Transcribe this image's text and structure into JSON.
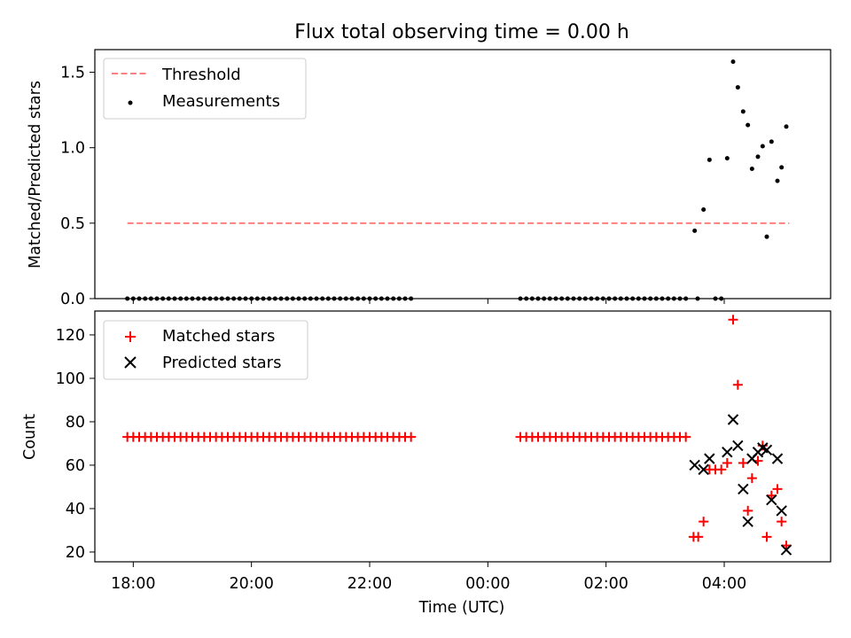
{
  "chart_data": [
    {
      "type": "scatter",
      "title": "Flux total observing time = 0.00 h",
      "xlabel": "",
      "ylabel": "Matched/Predicted stars",
      "ylim": [
        0,
        1.65
      ],
      "xlim": [
        -6.65,
        5.8
      ],
      "yticks": [
        0.0,
        0.5,
        1.0,
        1.5
      ],
      "ytick_labels": [
        "0.0",
        "0.5",
        "1.0",
        "1.5"
      ],
      "legend_position": "top-left",
      "threshold": {
        "name": "Threshold",
        "value": 0.5,
        "x_range": [
          -6.1,
          5.1
        ],
        "color": "#ff7f7f",
        "style": "dashed"
      },
      "series": [
        {
          "name": "Measurements",
          "color": "#000000",
          "marker": "dot",
          "segments": [
            {
              "start": -6.1,
              "end": -1.25,
              "step": 0.1,
              "value": 0
            },
            {
              "start": 0.55,
              "end": 3.35,
              "step": 0.1,
              "value": 0
            }
          ],
          "points": [
            {
              "x": 3.5,
              "y": 0.45
            },
            {
              "x": 3.55,
              "y": 0.0
            },
            {
              "x": 3.65,
              "y": 0.59
            },
            {
              "x": 3.75,
              "y": 0.92
            },
            {
              "x": 3.85,
              "y": 0.0
            },
            {
              "x": 3.95,
              "y": 0.0
            },
            {
              "x": 4.05,
              "y": 0.93
            },
            {
              "x": 4.15,
              "y": 1.57
            },
            {
              "x": 4.23,
              "y": 1.4
            },
            {
              "x": 4.32,
              "y": 1.24
            },
            {
              "x": 4.4,
              "y": 1.15
            },
            {
              "x": 4.47,
              "y": 0.86
            },
            {
              "x": 4.57,
              "y": 0.94
            },
            {
              "x": 4.65,
              "y": 1.01
            },
            {
              "x": 4.72,
              "y": 0.41
            },
            {
              "x": 4.8,
              "y": 1.04
            },
            {
              "x": 4.9,
              "y": 0.78
            },
            {
              "x": 4.97,
              "y": 0.87
            },
            {
              "x": 5.05,
              "y": 1.14
            }
          ]
        }
      ]
    },
    {
      "type": "scatter",
      "title": "",
      "xlabel": "Time (UTC)",
      "ylabel": "Count",
      "ylim": [
        15.5,
        131
      ],
      "xlim": [
        -6.65,
        5.8
      ],
      "yticks": [
        20,
        40,
        60,
        80,
        100,
        120
      ],
      "ytick_labels": [
        "20",
        "40",
        "60",
        "80",
        "100",
        "120"
      ],
      "xticks": [
        -6,
        -4,
        -2,
        0,
        2,
        4
      ],
      "xtick_labels": [
        "18:00",
        "20:00",
        "22:00",
        "00:00",
        "02:00",
        "04:00"
      ],
      "legend_position": "top-left",
      "series": [
        {
          "name": "Matched stars",
          "color": "#ff0000",
          "marker": "plus",
          "segments": [
            {
              "start": -6.1,
              "end": -1.25,
              "step": 0.1,
              "value": 73
            },
            {
              "start": 0.55,
              "end": 3.35,
              "step": 0.1,
              "value": 73
            }
          ],
          "points": [
            {
              "x": 3.48,
              "y": 27
            },
            {
              "x": 3.56,
              "y": 27
            },
            {
              "x": 3.65,
              "y": 34
            },
            {
              "x": 3.75,
              "y": 58
            },
            {
              "x": 3.85,
              "y": 58
            },
            {
              "x": 3.95,
              "y": 58
            },
            {
              "x": 4.05,
              "y": 61
            },
            {
              "x": 4.15,
              "y": 127
            },
            {
              "x": 4.23,
              "y": 97
            },
            {
              "x": 4.32,
              "y": 61
            },
            {
              "x": 4.4,
              "y": 39
            },
            {
              "x": 4.47,
              "y": 54
            },
            {
              "x": 4.57,
              "y": 62
            },
            {
              "x": 4.65,
              "y": 69
            },
            {
              "x": 4.72,
              "y": 27
            },
            {
              "x": 4.8,
              "y": 46
            },
            {
              "x": 4.9,
              "y": 49
            },
            {
              "x": 4.97,
              "y": 34
            },
            {
              "x": 5.05,
              "y": 23
            }
          ]
        },
        {
          "name": "Predicted stars",
          "color": "#000000",
          "marker": "x",
          "points": [
            {
              "x": 3.5,
              "y": 60
            },
            {
              "x": 3.65,
              "y": 58
            },
            {
              "x": 3.75,
              "y": 63
            },
            {
              "x": 4.05,
              "y": 66
            },
            {
              "x": 4.15,
              "y": 81
            },
            {
              "x": 4.23,
              "y": 69
            },
            {
              "x": 4.32,
              "y": 49
            },
            {
              "x": 4.4,
              "y": 34
            },
            {
              "x": 4.47,
              "y": 63
            },
            {
              "x": 4.57,
              "y": 66
            },
            {
              "x": 4.65,
              "y": 68
            },
            {
              "x": 4.72,
              "y": 67
            },
            {
              "x": 4.8,
              "y": 44
            },
            {
              "x": 4.9,
              "y": 63
            },
            {
              "x": 4.97,
              "y": 39
            },
            {
              "x": 5.05,
              "y": 21
            }
          ]
        }
      ]
    }
  ]
}
